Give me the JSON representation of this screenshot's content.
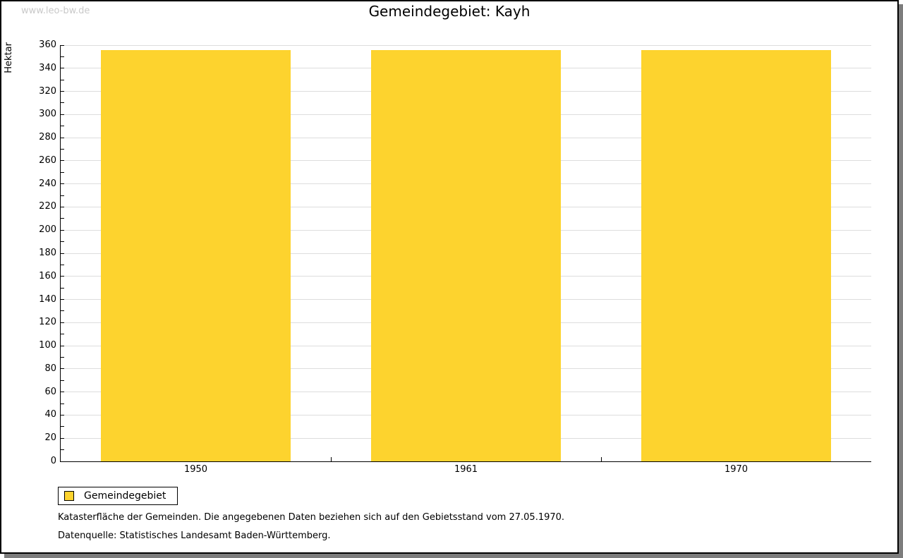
{
  "page": {
    "watermark": "www.leo-bw.de",
    "footnote_line1": "Katasterfläche der Gemeinden. Die angegebenen Daten beziehen sich auf den Gebietsstand vom 27.05.1970.",
    "footnote_line2": "Datenquelle: Statistisches Landesamt Baden-Württemberg."
  },
  "chart_data": {
    "type": "bar",
    "title": "Gemeindegebiet: Kayh",
    "ylabel": "Hektar",
    "xlabel": "",
    "categories": [
      "1950",
      "1961",
      "1970"
    ],
    "series": [
      {
        "name": "Gemeindegebiet",
        "values": [
          356,
          356,
          356
        ]
      }
    ],
    "ylim": [
      0,
      360
    ],
    "ytick_step": 20,
    "minor_ytick_step": 10,
    "grid": true,
    "legend_position": "bottom-left",
    "colors": {
      "bar": "#FDD32E",
      "grid": "#DDDDDD",
      "axis": "#000000",
      "watermark": "#C9C9C9"
    }
  }
}
